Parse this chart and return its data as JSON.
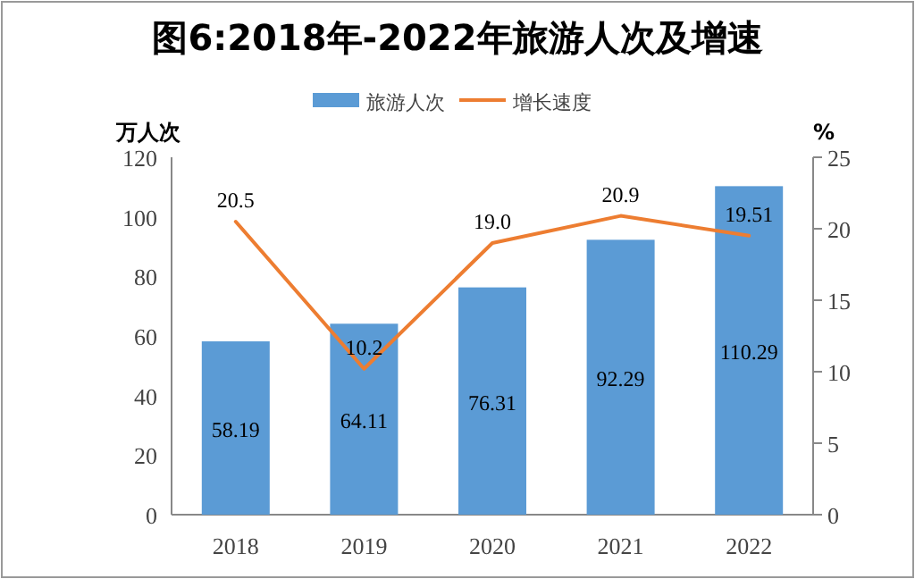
{
  "chart_data": {
    "type": "bar",
    "title": "图6:2018年-2022年旅游人次及增速",
    "categories": [
      "2018",
      "2019",
      "2020",
      "2021",
      "2022"
    ],
    "series": [
      {
        "name": "旅游人次",
        "color": "#5b9bd5",
        "values": [
          58.19,
          64.11,
          76.31,
          92.29,
          110.29
        ],
        "value_labels": [
          "58.19",
          "64.11",
          "76.31",
          "92.29",
          "110.29"
        ]
      },
      {
        "name": "增长速度",
        "type": "line",
        "axis": "y2",
        "color": "#ed7d31",
        "values": [
          20.5,
          10.2,
          19.0,
          20.9,
          19.51
        ],
        "value_labels": [
          "20.5",
          "10.2",
          "19.0",
          "20.9",
          "19.51"
        ]
      }
    ],
    "ylabel": "万人次",
    "y2label": "%",
    "ylim": [
      0,
      120
    ],
    "yticks": [
      0,
      20,
      40,
      60,
      80,
      100,
      120
    ],
    "y2lim": [
      0,
      25
    ],
    "y2ticks": [
      0,
      5,
      10,
      15,
      20,
      25
    ],
    "legend": "top"
  }
}
